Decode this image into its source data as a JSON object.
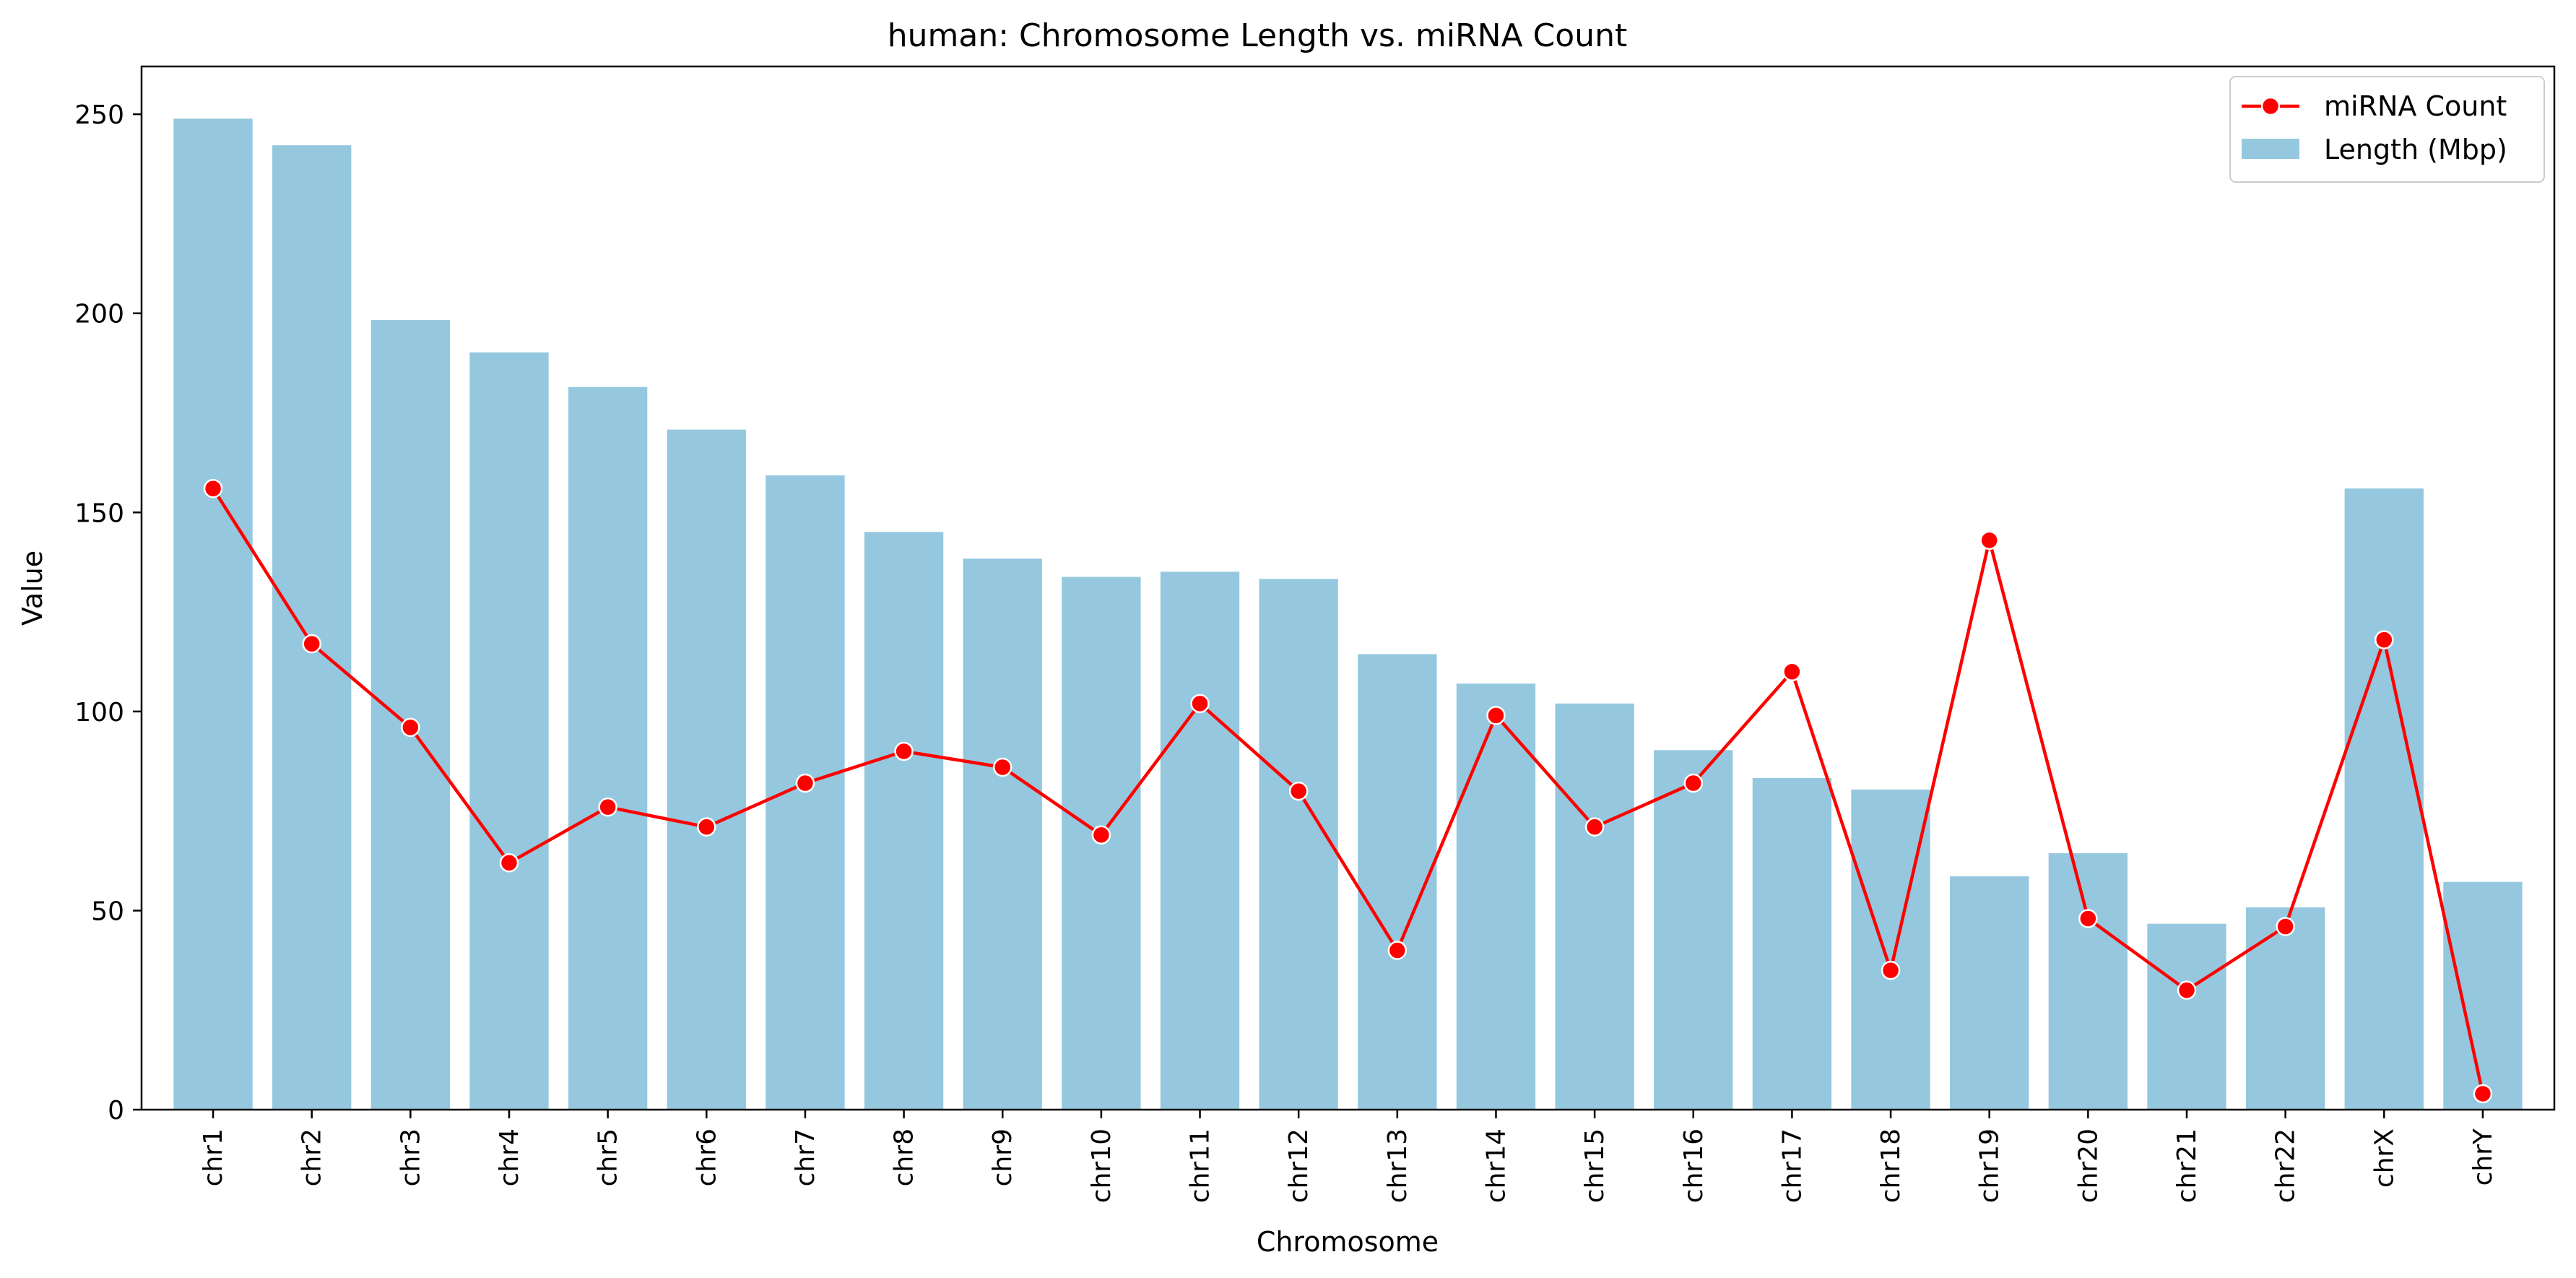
{
  "chart_data": {
    "type": "bar",
    "title": "human: Chromosome Length vs. miRNA Count",
    "xlabel": "Chromosome",
    "ylabel": "Value",
    "ylim": [
      0,
      262
    ],
    "yticks": [
      0,
      50,
      100,
      150,
      200,
      250
    ],
    "grid": false,
    "legend_position": "top-right",
    "categories": [
      "chr1",
      "chr2",
      "chr3",
      "chr4",
      "chr5",
      "chr6",
      "chr7",
      "chr8",
      "chr9",
      "chr10",
      "chr11",
      "chr12",
      "chr13",
      "chr14",
      "chr15",
      "chr16",
      "chr17",
      "chr18",
      "chr19",
      "chr20",
      "chr21",
      "chr22",
      "chrX",
      "chrY"
    ],
    "series": [
      {
        "name": "miRNA Count",
        "type": "line",
        "color": "#ff0000",
        "values": [
          156,
          117,
          96,
          62,
          76,
          71,
          82,
          90,
          86,
          69,
          102,
          80,
          40,
          99,
          71,
          82,
          110,
          35,
          143,
          48,
          30,
          46,
          118,
          4
        ]
      },
      {
        "name": "Length (Mbp)",
        "type": "bar",
        "color": "#95c8de",
        "values": [
          248.9,
          242.2,
          198.3,
          190.2,
          181.5,
          170.8,
          159.3,
          145.1,
          138.4,
          133.8,
          135.1,
          133.3,
          114.4,
          107.0,
          102.0,
          90.3,
          83.3,
          80.4,
          58.6,
          64.4,
          46.7,
          50.8,
          156.0,
          57.2
        ]
      }
    ]
  }
}
